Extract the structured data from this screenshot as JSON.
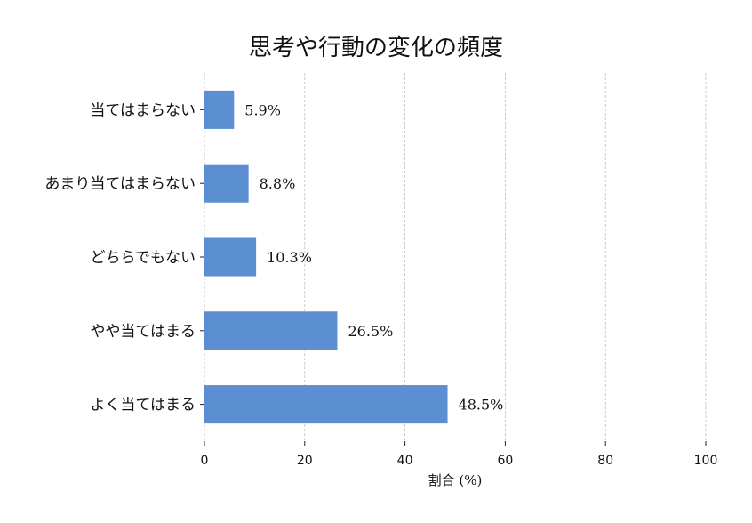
{
  "chart_data": {
    "type": "bar",
    "orientation": "horizontal",
    "title": "思考や行動の変化の頻度",
    "xlabel": "割合 (%)",
    "ylabel": "",
    "xlim": [
      0,
      100
    ],
    "xticks": [
      "0",
      "20",
      "40",
      "60",
      "80",
      "100"
    ],
    "grid": true,
    "bar_color": "#5b8fd1",
    "categories": [
      "当てはまらない",
      "あまり当てはまらない",
      "どちらでもない",
      "やや当てはまる",
      "よく当てはまる"
    ],
    "values": [
      5.9,
      8.8,
      10.3,
      26.5,
      48.5
    ],
    "data_labels": [
      "5.9%",
      "8.8%",
      "10.3%",
      "26.5%",
      "48.5%"
    ]
  }
}
